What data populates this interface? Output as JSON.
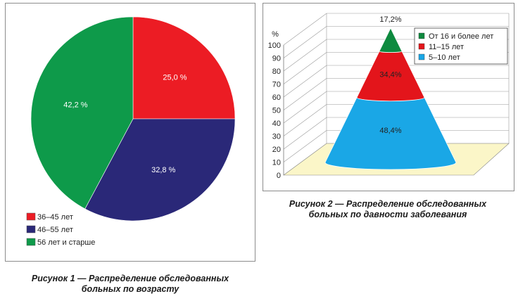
{
  "figure1": {
    "caption_line1": "Рисунок 1 — Распределение обследованных",
    "caption_line2": "больных по возрасту"
  },
  "figure2": {
    "caption_line1": "Рисунок 2 — Распределение обследованных",
    "caption_line2": "больных по давности заболевания"
  },
  "chart_data": [
    {
      "type": "pie",
      "title": "",
      "categories": [
        "36–45 лет",
        "46–55 лет",
        "56 лет и старше"
      ],
      "values": [
        25.0,
        32.8,
        42.2
      ],
      "value_labels": [
        "25,0 %",
        "32,8 %",
        "42,2 %"
      ],
      "colors": [
        "#ec1c24",
        "#2a2878",
        "#0e9a4a"
      ],
      "legend": "bottom-left"
    },
    {
      "type": "area",
      "subtype": "3d-cone-stacked",
      "title": "",
      "ylabel": "%",
      "ylim": [
        0,
        100
      ],
      "yticks": [
        0,
        10,
        20,
        30,
        40,
        50,
        60,
        70,
        80,
        90,
        100
      ],
      "categories": [
        "5–10 лет",
        "11–15 лет",
        "От 16 и более лет"
      ],
      "values": [
        48.4,
        34.4,
        17.2
      ],
      "value_labels": [
        "48,4%",
        "34,4%",
        "17,2%"
      ],
      "colors": [
        "#1aa7e6",
        "#e3151b",
        "#0e8a3f"
      ],
      "legend": "top-right",
      "legend_entries": [
        "От 16 и более лет",
        "11–15 лет",
        "5–10 лет"
      ],
      "grid": true
    }
  ]
}
